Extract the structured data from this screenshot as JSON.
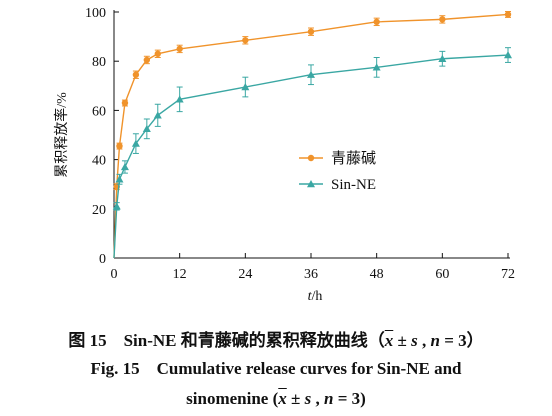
{
  "chart_data": {
    "type": "line",
    "xlabel": "t/h",
    "ylabel": "累积释放率/%",
    "xlim": [
      0,
      72
    ],
    "ylim": [
      0,
      100
    ],
    "x_ticks": [
      0,
      12,
      24,
      36,
      48,
      60,
      72
    ],
    "y_ticks": [
      0,
      20,
      40,
      60,
      80,
      100
    ],
    "grid": false,
    "legend_position": "middle-right",
    "series": [
      {
        "name": "青藤碱",
        "color": "#f0932b",
        "marker": "circle",
        "x": [
          0,
          0.5,
          1,
          2,
          4,
          6,
          8,
          12,
          24,
          36,
          48,
          60,
          72
        ],
        "y": [
          0,
          29,
          45.5,
          63,
          74.5,
          80.5,
          83,
          85,
          88.5,
          92,
          96,
          97,
          99
        ],
        "error": [
          0,
          1.2,
          1.2,
          1.2,
          1.5,
          1.5,
          1.5,
          1.5,
          1.5,
          1.5,
          1.5,
          1.5,
          1.2
        ]
      },
      {
        "name": "Sin-NE",
        "color": "#3aa7a3",
        "marker": "triangle",
        "x": [
          0,
          0.5,
          1,
          2,
          4,
          6,
          8,
          12,
          24,
          36,
          48,
          60,
          72
        ],
        "y": [
          0,
          21,
          32,
          37,
          46.5,
          52.5,
          58,
          64.5,
          69.5,
          74.5,
          77.5,
          81,
          82.5
        ],
        "error": [
          0,
          1.5,
          2,
          2.5,
          4,
          4,
          4.5,
          5,
          4,
          4,
          4,
          3,
          3
        ]
      }
    ]
  },
  "captions": {
    "zh_prefix": "图 15　Sin-NE 和青藤碱的累积释放曲线（",
    "en1": "Fig. 15　Cumulative release curves for Sin-NE and",
    "en2_prefix": "sinomenine (",
    "sym_x": "x",
    "sym_pm": " ± ",
    "sym_s": "s",
    "sym_sep": " , ",
    "sym_n": "n",
    "sym_eq": " = 3",
    "zh_close": "）",
    "en_close": ")"
  }
}
